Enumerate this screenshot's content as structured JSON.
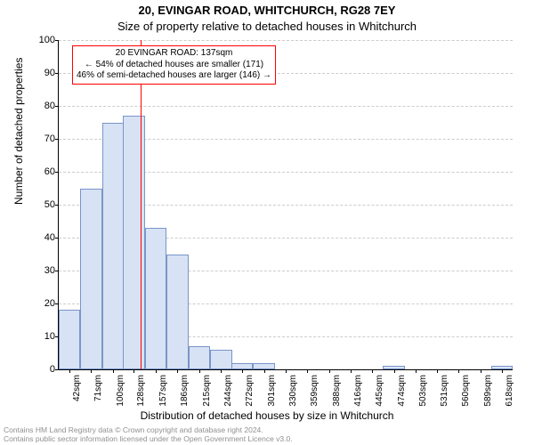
{
  "title_main": "20, EVINGAR ROAD, WHITCHURCH, RG28 7EY",
  "title_sub": "Size of property relative to detached houses in Whitchurch",
  "ylabel": "Number of detached properties",
  "xlabel": "Distribution of detached houses by size in Whitchurch",
  "chart": {
    "type": "histogram",
    "ylim": [
      0,
      100
    ],
    "ytick_step": 10,
    "bar_fill": "#d7e2f4",
    "bar_stroke": "#7a95c9",
    "grid_color": "#cccccc",
    "background_color": "#ffffff",
    "vline_x": 137,
    "vline_color": "#ff0000",
    "x_min": 28,
    "x_max": 632,
    "bar_bin_width": 29,
    "xtick_labels": [
      "42sqm",
      "71sqm",
      "100sqm",
      "128sqm",
      "157sqm",
      "186sqm",
      "215sqm",
      "244sqm",
      "272sqm",
      "301sqm",
      "330sqm",
      "359sqm",
      "388sqm",
      "416sqm",
      "445sqm",
      "474sqm",
      "503sqm",
      "531sqm",
      "560sqm",
      "589sqm",
      "618sqm"
    ],
    "xtick_values": [
      42,
      71,
      100,
      128,
      157,
      186,
      215,
      244,
      272,
      301,
      330,
      359,
      388,
      416,
      445,
      474,
      503,
      531,
      560,
      589,
      618
    ],
    "bars": [
      {
        "x": 42,
        "y": 18
      },
      {
        "x": 71,
        "y": 55
      },
      {
        "x": 100,
        "y": 75
      },
      {
        "x": 128,
        "y": 77
      },
      {
        "x": 157,
        "y": 43
      },
      {
        "x": 186,
        "y": 35
      },
      {
        "x": 215,
        "y": 7
      },
      {
        "x": 244,
        "y": 6
      },
      {
        "x": 272,
        "y": 2
      },
      {
        "x": 301,
        "y": 2
      },
      {
        "x": 474,
        "y": 1
      },
      {
        "x": 618,
        "y": 1
      }
    ]
  },
  "annotation": {
    "line1": "20 EVINGAR ROAD: 137sqm",
    "line2": "← 54% of detached houses are smaller (171)",
    "line3": "46% of semi-detached houses are larger (146) →",
    "border_color": "#ff0000",
    "fontsize": 10
  },
  "footer": {
    "line1": "Contains HM Land Registry data © Crown copyright and database right 2024.",
    "line2": "Contains public sector information licensed under the Open Government Licence v3.0.",
    "color": "#909090"
  }
}
